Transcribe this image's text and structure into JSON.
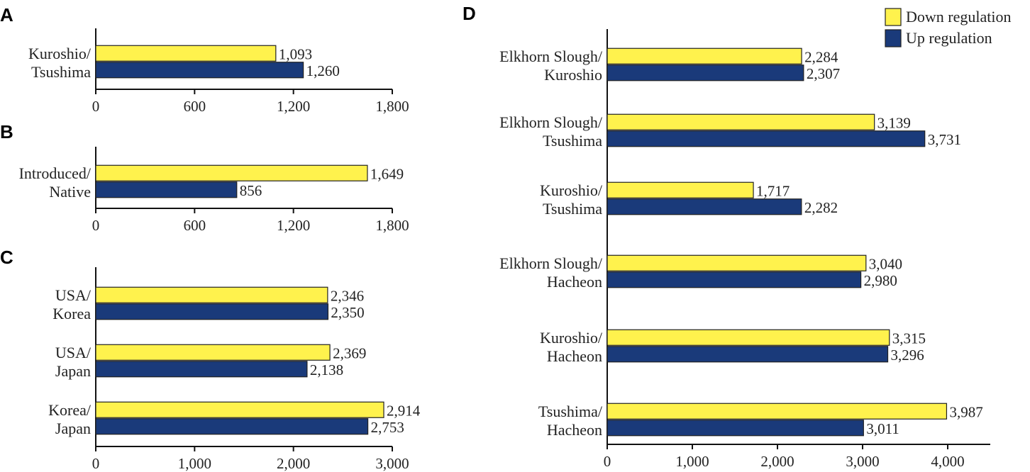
{
  "legend": {
    "items": [
      {
        "name": "Down regulation",
        "color": "#FFF24D"
      },
      {
        "name": "Up regulation",
        "color": "#1A3A7A"
      }
    ]
  },
  "chart_data": [
    {
      "id": "A",
      "type": "bar",
      "orientation": "horizontal",
      "panel_label": "A",
      "categories": [
        [
          "Kuroshio/",
          "Tsushima"
        ]
      ],
      "series": [
        {
          "name": "Down regulation",
          "values": [
            1093
          ]
        },
        {
          "name": "Up regulation",
          "values": [
            1260
          ]
        }
      ],
      "xlim": [
        0,
        1800
      ],
      "xticks": [
        0,
        600,
        1200,
        1800
      ],
      "xtick_labels": [
        "0",
        "600",
        "1,200",
        "1,800"
      ]
    },
    {
      "id": "B",
      "type": "bar",
      "orientation": "horizontal",
      "panel_label": "B",
      "categories": [
        [
          "Introduced/",
          "Native"
        ]
      ],
      "series": [
        {
          "name": "Down regulation",
          "values": [
            1649
          ]
        },
        {
          "name": "Up regulation",
          "values": [
            856
          ]
        }
      ],
      "xlim": [
        0,
        1800
      ],
      "xticks": [
        0,
        600,
        1200,
        1800
      ],
      "xtick_labels": [
        "0",
        "600",
        "1,200",
        "1,800"
      ]
    },
    {
      "id": "C",
      "type": "bar",
      "orientation": "horizontal",
      "panel_label": "C",
      "categories": [
        [
          "USA/",
          "Korea"
        ],
        [
          "USA/",
          "Japan"
        ],
        [
          "Korea/",
          "Japan"
        ]
      ],
      "series": [
        {
          "name": "Down regulation",
          "values": [
            2346,
            2369,
            2914
          ]
        },
        {
          "name": "Up regulation",
          "values": [
            2350,
            2138,
            2753
          ]
        }
      ],
      "xlim": [
        0,
        3000
      ],
      "xticks": [
        0,
        1000,
        2000,
        3000
      ],
      "xtick_labels": [
        "0",
        "1,000",
        "2,000",
        "3,000"
      ]
    },
    {
      "id": "D",
      "type": "bar",
      "orientation": "horizontal",
      "panel_label": "D",
      "categories": [
        [
          "Elkhorn Slough/",
          "Kuroshio"
        ],
        [
          "Elkhorn Slough/",
          "Tsushima"
        ],
        [
          "Kuroshio/",
          "Tsushima"
        ],
        [
          "Elkhorn Slough/",
          "Hacheon"
        ],
        [
          "Kuroshio/",
          "Hacheon"
        ],
        [
          "Tsushima/",
          "Hacheon"
        ]
      ],
      "series": [
        {
          "name": "Down regulation",
          "values": [
            2284,
            3139,
            1717,
            3040,
            3315,
            3987
          ]
        },
        {
          "name": "Up regulation",
          "values": [
            2307,
            3731,
            2282,
            2980,
            3296,
            3011
          ]
        }
      ],
      "xlim": [
        0,
        4500
      ],
      "xticks": [
        0,
        1000,
        2000,
        3000,
        4000
      ],
      "xtick_labels": [
        "0",
        "1,000",
        "2,000",
        "3,000",
        "4,000"
      ]
    }
  ]
}
